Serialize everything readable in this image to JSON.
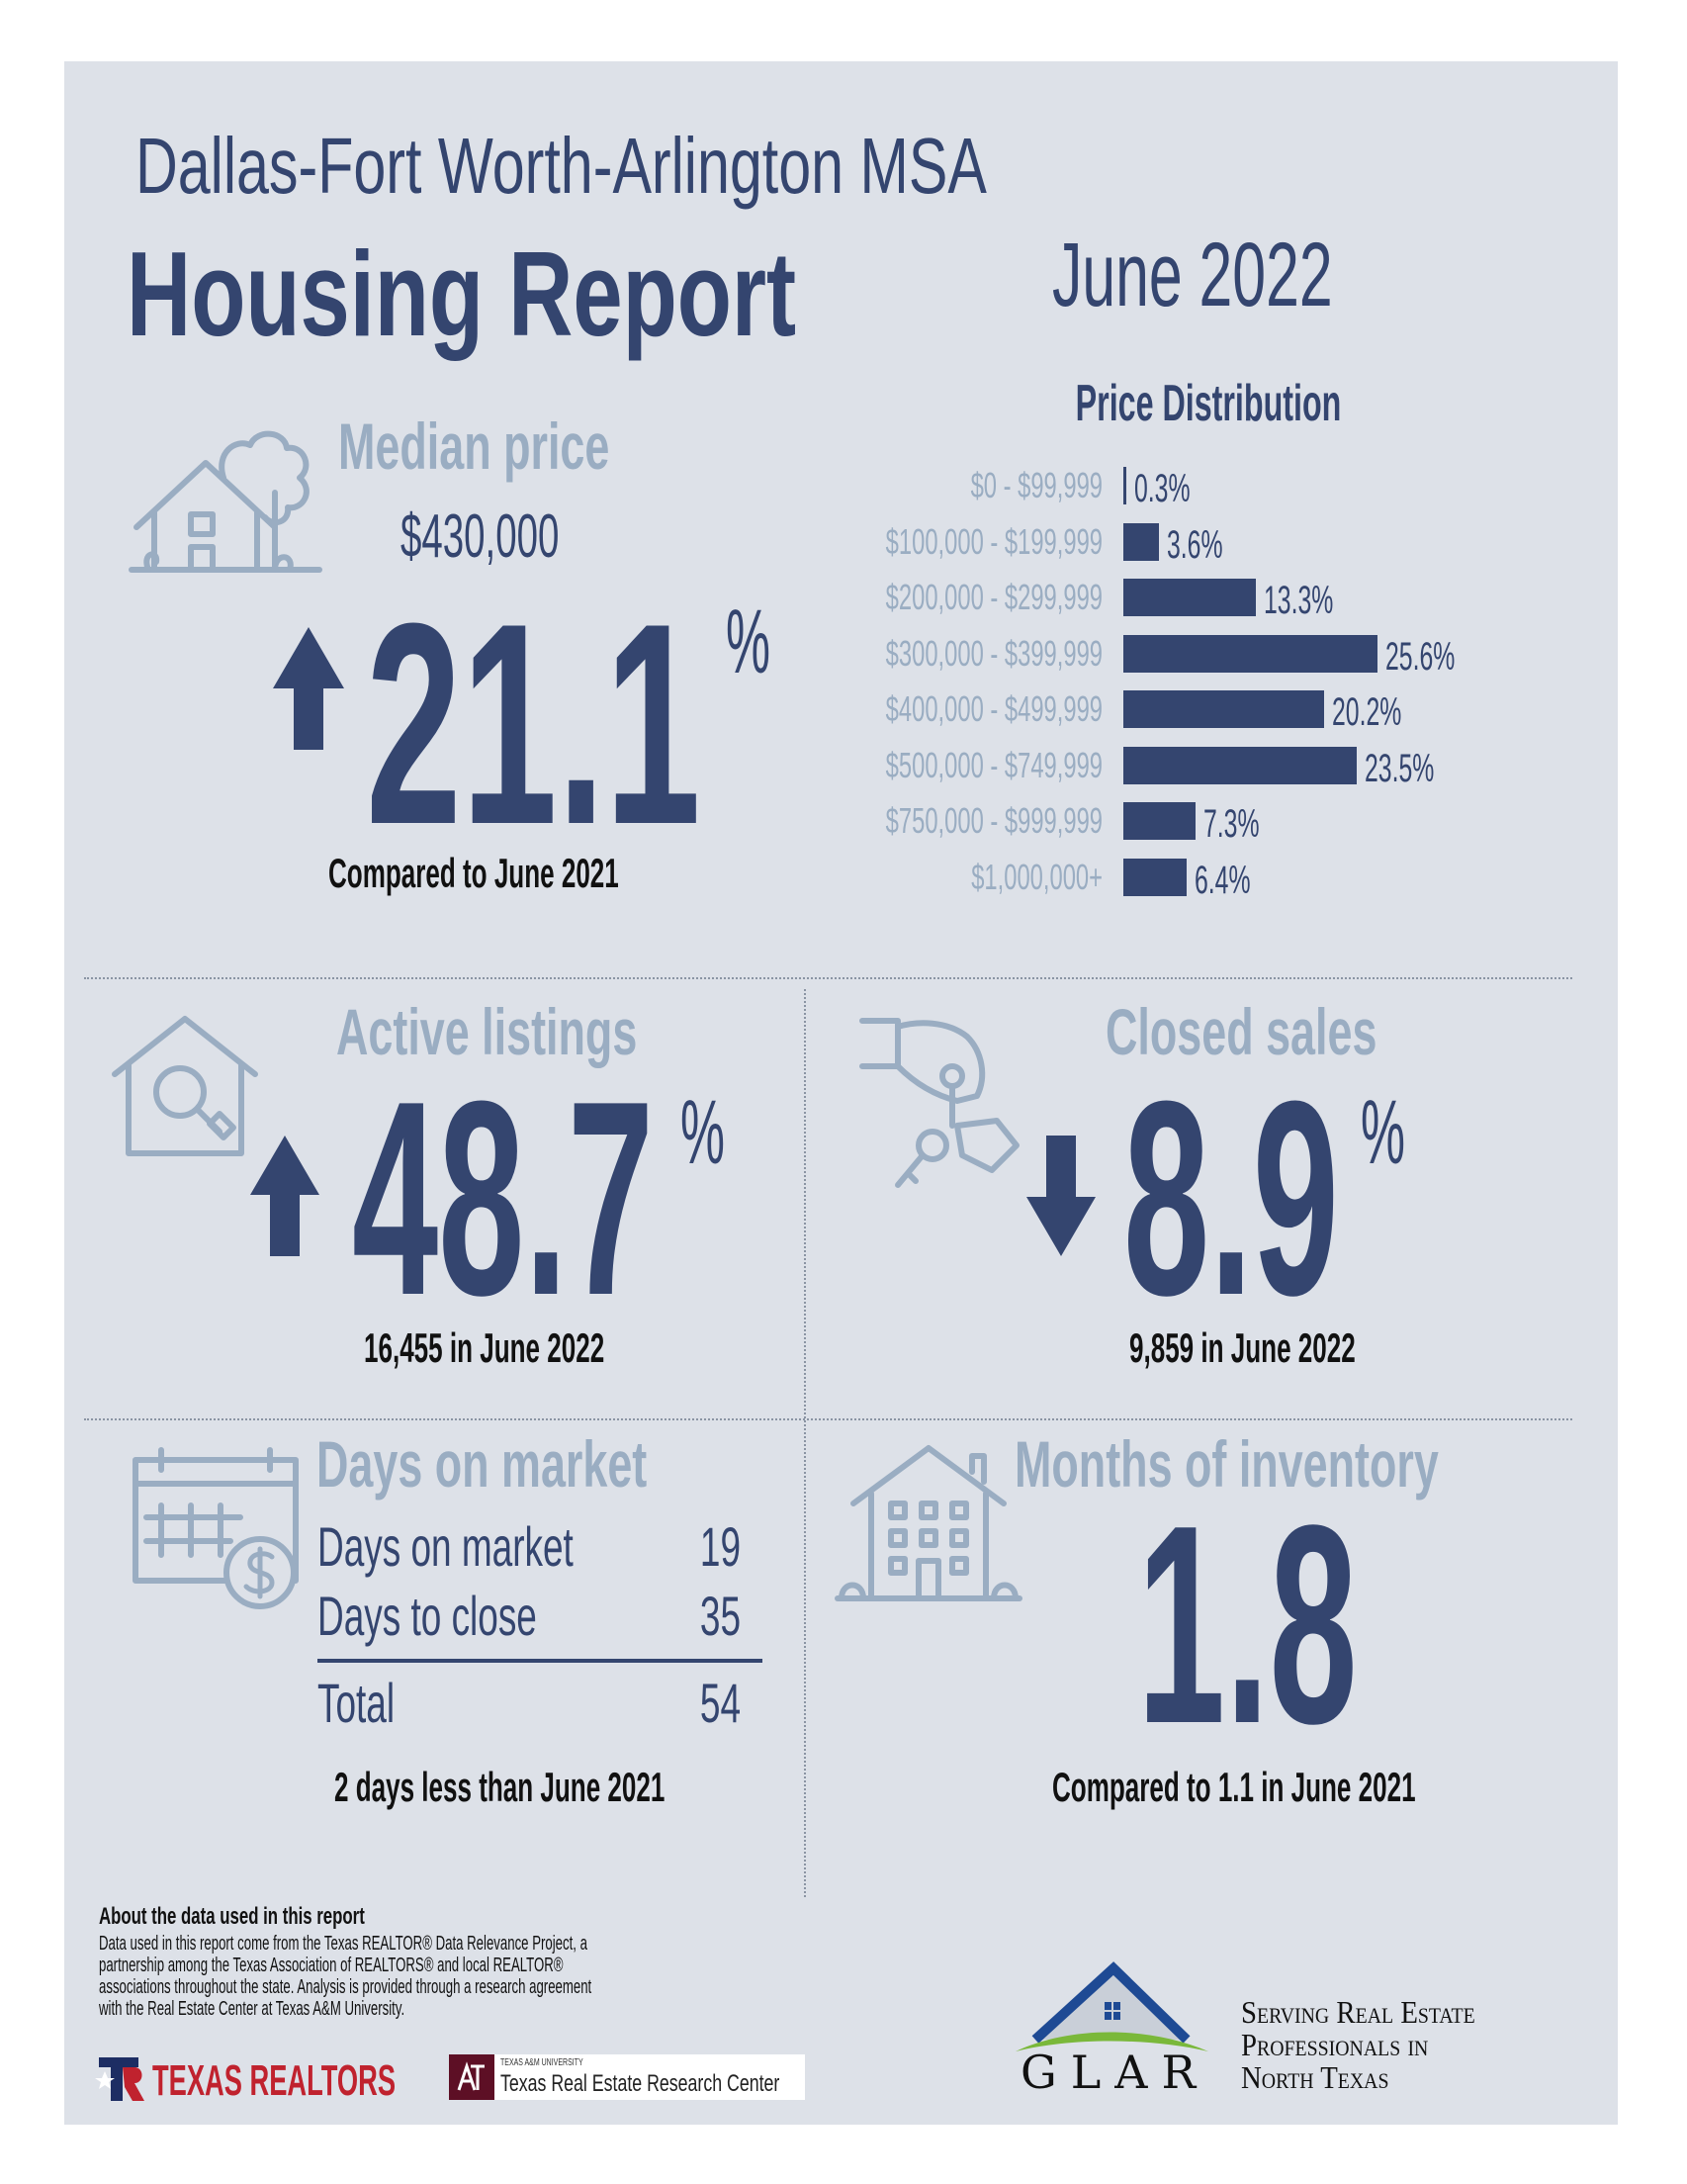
{
  "header": {
    "region": "Dallas-Fort Worth-Arlington MSA",
    "title": "Housing Report",
    "period": "June 2022"
  },
  "colors": {
    "navy": "#34456f",
    "light": "#9aadc2",
    "background": "#dde1e8"
  },
  "median_price": {
    "heading": "Median price",
    "value": "$430,000",
    "change": "21.1",
    "unit": "%",
    "direction": "up",
    "note": "Compared to June 2021",
    "icon": "house-tree-icon"
  },
  "chart_data": {
    "type": "bar",
    "orientation": "horizontal",
    "title": "Price Distribution",
    "categories": [
      "$0 - $99,999",
      "$100,000 - $199,999",
      "$200,000 - $299,999",
      "$300,000 - $399,999",
      "$400,000 - $499,999",
      "$500,000 - $749,999",
      "$750,000 - $999,999",
      "$1,000,000+"
    ],
    "values": [
      0.3,
      3.6,
      13.3,
      25.6,
      20.2,
      23.5,
      7.3,
      6.4
    ],
    "labels": [
      "0.3%",
      "3.6%",
      "13.3%",
      "25.6%",
      "20.2%",
      "23.5%",
      "7.3%",
      "6.4%"
    ],
    "grid": false
  },
  "active_listings": {
    "heading": "Active listings",
    "change": "48.7",
    "unit": "%",
    "direction": "up",
    "note": "16,455 in June 2022",
    "icon": "house-search-icon"
  },
  "closed_sales": {
    "heading": "Closed sales",
    "change": "8.9",
    "unit": "%",
    "direction": "down",
    "note": "9,859 in June 2022",
    "icon": "hand-keys-icon"
  },
  "days_on_market": {
    "heading": "Days on market",
    "rows": [
      {
        "label": "Days on market",
        "value": "19"
      },
      {
        "label": "Days to close",
        "value": "35"
      }
    ],
    "total": {
      "label": "Total",
      "value": "54"
    },
    "note": "2 days less than June 2021",
    "icon": "calendar-dollar-icon"
  },
  "months_inventory": {
    "heading": "Months of inventory",
    "value": "1.8",
    "note": "Compared to 1.1 in June 2021",
    "icon": "apartment-house-icon"
  },
  "footer": {
    "about_title": "About the data used in this report",
    "about_lines": [
      "Data used in this report come from the Texas REALTOR® Data Relevance Project, a",
      "partnership among the Texas Association of REALTORS® and local REALTOR®",
      "associations throughout the state. Analysis is provided through a research agreement",
      "with the Real Estate Center at Texas A&M University."
    ],
    "logo_texas_realtors": "TEXAS REALTORS",
    "logo_tamu_small": "TEXAS A&M UNIVERSITY",
    "logo_tamu": "Texas Real Estate Research Center",
    "logo_glar": "GLAR",
    "tagline_lines": [
      "Serving Real Estate",
      "Professionals in",
      "North Texas"
    ]
  }
}
